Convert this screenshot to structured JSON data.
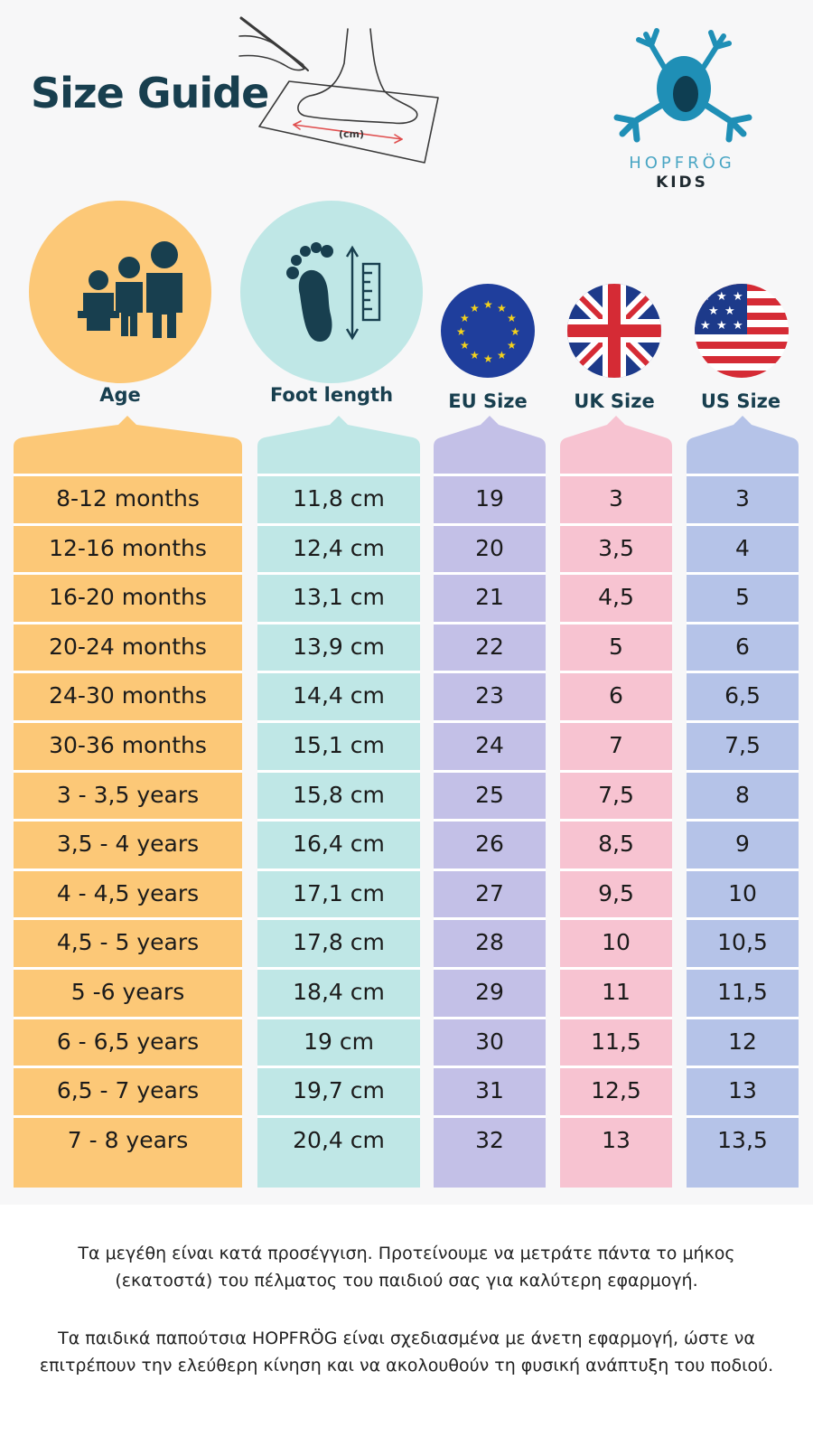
{
  "header": {
    "title": "Size Guide",
    "sketch_unit_label": "(cm)"
  },
  "logo": {
    "brand": "HOPFRÖG",
    "sub": "KIDS",
    "colors": {
      "frog": "#1f8fb6",
      "frog_dark": "#0e3e52"
    }
  },
  "columns": {
    "age": {
      "label": "Age",
      "color": "#fcc877",
      "icon": "family-icon"
    },
    "foot": {
      "label": "Foot length",
      "color": "#bfe7e6",
      "icon": "foot-ruler-icon"
    },
    "eu": {
      "label": "EU Size",
      "color": "#c3c0e7",
      "icon": "eu-flag-icon"
    },
    "uk": {
      "label": "UK Size",
      "color": "#f7c3d1",
      "icon": "uk-flag-icon"
    },
    "us": {
      "label": "US Size",
      "color": "#b5c3e8",
      "icon": "us-flag-icon"
    }
  },
  "rows": [
    {
      "age": "8-12 months",
      "foot": "11,8 cm",
      "eu": "19",
      "uk": "3",
      "us": "3"
    },
    {
      "age": "12-16 months",
      "foot": "12,4 cm",
      "eu": "20",
      "uk": "3,5",
      "us": "4"
    },
    {
      "age": "16-20 months",
      "foot": "13,1 cm",
      "eu": "21",
      "uk": "4,5",
      "us": "5"
    },
    {
      "age": "20-24 months",
      "foot": "13,9 cm",
      "eu": "22",
      "uk": "5",
      "us": "6"
    },
    {
      "age": "24-30 months",
      "foot": "14,4 cm",
      "eu": "23",
      "uk": "6",
      "us": "6,5"
    },
    {
      "age": "30-36 months",
      "foot": "15,1 cm",
      "eu": "24",
      "uk": "7",
      "us": "7,5"
    },
    {
      "age": "3 - 3,5 years",
      "foot": "15,8 cm",
      "eu": "25",
      "uk": "7,5",
      "us": "8"
    },
    {
      "age": "3,5 - 4 years",
      "foot": "16,4 cm",
      "eu": "26",
      "uk": "8,5",
      "us": "9"
    },
    {
      "age": "4 - 4,5 years",
      "foot": "17,1 cm",
      "eu": "27",
      "uk": "9,5",
      "us": "10"
    },
    {
      "age": "4,5 - 5 years",
      "foot": "17,8 cm",
      "eu": "28",
      "uk": "10",
      "us": "10,5"
    },
    {
      "age": "5 -6 years",
      "foot": "18,4 cm",
      "eu": "29",
      "uk": "11",
      "us": "11,5"
    },
    {
      "age": "6 - 6,5 years",
      "foot": "19 cm",
      "eu": "30",
      "uk": "11,5",
      "us": "12"
    },
    {
      "age": "6,5 - 7 years",
      "foot": "19,7 cm",
      "eu": "31",
      "uk": "12,5",
      "us": "13"
    },
    {
      "age": "7 - 8 years",
      "foot": "20,4 cm",
      "eu": "32",
      "uk": "13",
      "us": "13,5"
    }
  ],
  "footer": {
    "paragraph1": "Τα μεγέθη είναι κατά προσέγγιση. Προτείνουμε να μετράτε πάντα το μήκος (εκατοστά) του πέλματος του παιδιού σας για καλύτερη εφαρμογή.",
    "paragraph2": "Τα παιδικά παπούτσια HOPFRÖG είναι σχεδιασμένα με άνετη εφαρμογή, ώστε να επιτρέπουν την ελεύθερη κίνηση και να ακολουθούν τη φυσική ανάπτυξη του ποδιού."
  }
}
